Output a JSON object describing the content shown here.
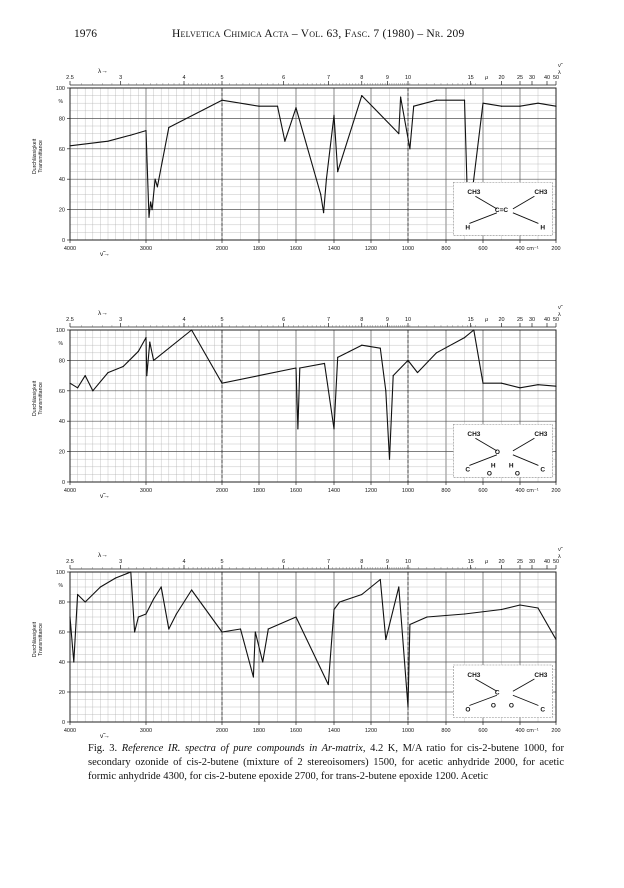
{
  "header": {
    "page_number": "1976",
    "journal": "Helvetica Chimica Acta – Vol. 63, Fasc. 7 (1980) – Nr. 209"
  },
  "axis_labels": {
    "lambda_symbol": "λ→",
    "lambda_right": "λ",
    "mu": "μ",
    "nu_symbol": "ν̃→",
    "nu_right": "ν̃",
    "ylabel_de": "Durchlässigkeit",
    "ylabel_en": "Transmittance",
    "percent": "%",
    "cm_unit": "cm⁻¹"
  },
  "chart_data": [
    {
      "type": "line",
      "panel": 1,
      "x_axis": "wavenumber",
      "x_ticks": [
        "4000",
        "3000",
        "2000",
        "1800",
        "1600",
        "1400",
        "1200",
        "1000",
        "800",
        "600",
        "400",
        "200"
      ],
      "top_ticks": [
        "2.5",
        "3",
        "4",
        "5",
        "6",
        "7",
        "8",
        "9",
        "10",
        "15",
        "20",
        "25",
        "30",
        "40",
        "50"
      ],
      "y_ticks": [
        "0",
        "20",
        "40",
        "60",
        "80",
        "100"
      ],
      "ylim": [
        0,
        100
      ],
      "grid": true,
      "structure_labels": [
        "CH3",
        "CH3",
        "C=C",
        "H",
        "H"
      ],
      "x": [
        4000,
        3500,
        3200,
        3000,
        2960,
        2940,
        2920,
        2880,
        2850,
        2700,
        2000,
        1800,
        1700,
        1660,
        1600,
        1470,
        1455,
        1440,
        1400,
        1380,
        1250,
        1050,
        1040,
        990,
        970,
        850,
        700,
        680,
        600,
        500,
        400,
        300,
        200
      ],
      "y": [
        62,
        65,
        69,
        72,
        15,
        25,
        20,
        40,
        35,
        74,
        92,
        88,
        88,
        65,
        87,
        30,
        18,
        40,
        82,
        45,
        95,
        70,
        94,
        60,
        88,
        92,
        92,
        10,
        90,
        88,
        88,
        90,
        88
      ]
    },
    {
      "type": "line",
      "panel": 2,
      "x_axis": "wavenumber",
      "x_ticks": [
        "4000",
        "3000",
        "2000",
        "1800",
        "1600",
        "1400",
        "1200",
        "1000",
        "800",
        "600",
        "400",
        "200"
      ],
      "top_ticks": [
        "2.5",
        "3",
        "4",
        "5",
        "6",
        "7",
        "8",
        "9",
        "10",
        "15",
        "20",
        "25",
        "30",
        "40",
        "50"
      ],
      "y_ticks": [
        "0",
        "20",
        "40",
        "60",
        "80",
        "100"
      ],
      "ylim": [
        0,
        100
      ],
      "grid": true,
      "structure_labels": [
        "CH3",
        "CH3",
        "O",
        "C",
        "C",
        "H",
        "H",
        "O",
        "O"
      ],
      "x": [
        4000,
        3900,
        3800,
        3700,
        3500,
        3300,
        3100,
        3000,
        2990,
        2950,
        2900,
        2400,
        2000,
        1800,
        1600,
        1590,
        1580,
        1450,
        1400,
        1380,
        1250,
        1150,
        1120,
        1100,
        1080,
        1000,
        950,
        850,
        700,
        650,
        600,
        500,
        400,
        300,
        200
      ],
      "y": [
        65,
        62,
        70,
        60,
        72,
        76,
        86,
        95,
        70,
        92,
        80,
        100,
        65,
        70,
        75,
        35,
        75,
        78,
        35,
        82,
        90,
        88,
        60,
        15,
        70,
        80,
        72,
        85,
        95,
        100,
        65,
        65,
        62,
        64,
        63
      ]
    },
    {
      "type": "line",
      "panel": 3,
      "x_axis": "wavenumber",
      "x_ticks": [
        "4000",
        "3000",
        "2000",
        "1800",
        "1600",
        "1400",
        "1200",
        "1000",
        "800",
        "600",
        "400",
        "200"
      ],
      "top_ticks": [
        "2.5",
        "3",
        "4",
        "5",
        "6",
        "7",
        "8",
        "9",
        "10",
        "15",
        "20",
        "25",
        "30",
        "40",
        "50"
      ],
      "y_ticks": [
        "0",
        "20",
        "40",
        "60",
        "80",
        "100"
      ],
      "ylim": [
        0,
        100
      ],
      "grid": true,
      "structure_labels": [
        "CH3",
        "CH3",
        "C",
        "O",
        "C",
        "O",
        "O"
      ],
      "x": [
        4000,
        3950,
        3900,
        3800,
        3600,
        3400,
        3200,
        3150,
        3100,
        3000,
        2900,
        2800,
        2700,
        2600,
        2500,
        2400,
        2000,
        1900,
        1830,
        1820,
        1780,
        1750,
        1600,
        1430,
        1400,
        1370,
        1250,
        1150,
        1120,
        1050,
        1000,
        990,
        900,
        700,
        500,
        400,
        300,
        200
      ],
      "y": [
        70,
        40,
        85,
        80,
        90,
        96,
        100,
        60,
        70,
        72,
        82,
        90,
        62,
        72,
        80,
        88,
        60,
        62,
        30,
        60,
        40,
        62,
        70,
        25,
        75,
        80,
        85,
        95,
        55,
        90,
        10,
        65,
        70,
        72,
        75,
        78,
        76,
        55
      ]
    }
  ],
  "caption": {
    "label": "Fig. 3.",
    "title": "Reference IR. spectra of pure compounds in Ar-matrix,",
    "body": "4.2 K, M/A ratio for cis-2-butene 1000, for secondary ozonide of cis-2-butene (mixture of 2 stereoisomers) 1500, for acetic anhydride 2000, for acetic formic anhydride 4300, for cis-2-butene epoxide 2700, for trans-2-butene epoxide 1200. Acetic"
  }
}
